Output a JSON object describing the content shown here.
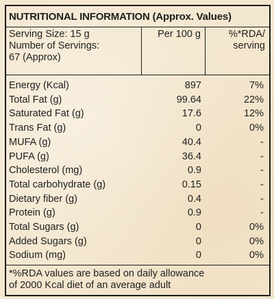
{
  "title": "NUTRITIONAL INFORMATION (Approx. Values)",
  "header": {
    "serving_size": "Serving Size: 15 g",
    "servings_label": "Number of Servings:",
    "servings_value": "67 (Approx)",
    "per100": "Per 100 g",
    "rda": [
      "%*RDA/",
      "serving"
    ]
  },
  "rows": [
    [
      "Energy (Kcal)",
      "897",
      "7%"
    ],
    [
      "Total Fat (g)",
      "99.64",
      "22%"
    ],
    [
      "Saturated Fat (g)",
      "17.6",
      "12%"
    ],
    [
      "Trans Fat (g)",
      "0",
      "0%"
    ],
    [
      "MUFA (g)",
      "40.4",
      "-"
    ],
    [
      "PUFA (g)",
      "36.4",
      "-"
    ],
    [
      "Cholesterol (mg)",
      "0.9",
      "-"
    ],
    [
      "Total carbohydrate (g)",
      "0.15",
      "-"
    ],
    [
      "Dietary fiber (g)",
      "0.4",
      "-"
    ],
    [
      "Protein (g)",
      "0.9",
      "-"
    ],
    [
      "Total Sugars (g)",
      "0",
      "0%"
    ],
    [
      "Added Sugars (g)",
      "0",
      "0%"
    ],
    [
      "Sodium (mg)",
      "0",
      "0%"
    ]
  ],
  "footnote": [
    "*%RDA values are based on daily allowance",
    "of 2000 Kcal diet of an average adult"
  ]
}
